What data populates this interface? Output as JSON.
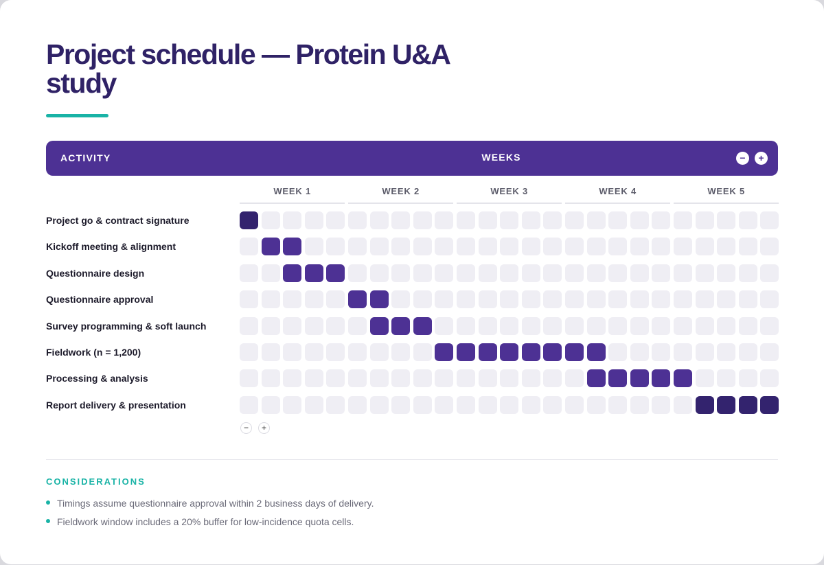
{
  "title": "Project schedule — Protein U&A study",
  "header": {
    "activity_label": "ACTIVITY",
    "weeks_label": "WEEKS",
    "zoom_out": "−",
    "zoom_in": "+"
  },
  "weeks": [
    "WEEK 1",
    "WEEK 2",
    "WEEK 3",
    "WEEK 4",
    "WEEK 5"
  ],
  "rows": [
    {
      "label": "Project go & contract signature",
      "active_days": [
        1
      ],
      "dark": true
    },
    {
      "label": "Kickoff meeting & alignment",
      "active_days": [
        2,
        3
      ],
      "dark": false
    },
    {
      "label": "Questionnaire design",
      "active_days": [
        3,
        4,
        5
      ],
      "dark": false
    },
    {
      "label": "Questionnaire approval",
      "active_days": [
        6,
        7
      ],
      "dark": false
    },
    {
      "label": "Survey programming & soft launch",
      "active_days": [
        7,
        8,
        9
      ],
      "dark": false
    },
    {
      "label": "Fieldwork (n = 1,200)",
      "active_days": [
        10,
        11,
        12,
        13,
        14,
        15,
        16,
        17
      ],
      "dark": false
    },
    {
      "label": "Processing & analysis",
      "active_days": [
        17,
        18,
        19,
        20,
        21
      ],
      "dark": false
    },
    {
      "label": "Report delivery & presentation",
      "active_days": [
        22,
        23,
        24,
        25
      ],
      "dark": true
    }
  ],
  "row_controls": {
    "remove": "−",
    "add": "+"
  },
  "considerations": {
    "heading": "CONSIDERATIONS",
    "items": [
      "Timings assume questionnaire approval within 2 business days of delivery.",
      "Fieldwork window includes a 20% buffer for low-incidence quota cells."
    ]
  }
}
